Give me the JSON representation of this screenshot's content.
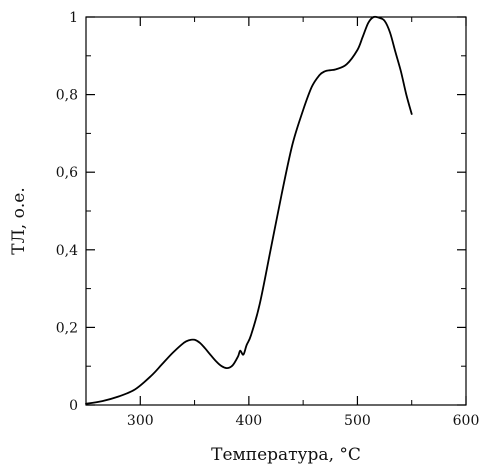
{
  "chart_data": {
    "type": "line",
    "xlabel": "Температура, °С",
    "ylabel": "ТЛ, о.е.",
    "xlim": [
      250,
      600
    ],
    "ylim": [
      0,
      1
    ],
    "x_ticks": [
      {
        "value": 300,
        "label": "300"
      },
      {
        "value": 400,
        "label": "400"
      },
      {
        "value": 500,
        "label": "500"
      },
      {
        "value": 600,
        "label": "600"
      }
    ],
    "y_ticks": [
      {
        "value": 0,
        "label": "0"
      },
      {
        "value": 0.2,
        "label": "0,2"
      },
      {
        "value": 0.4,
        "label": "0,4"
      },
      {
        "value": 0.6,
        "label": "0,6"
      },
      {
        "value": 0.8,
        "label": "0,8"
      },
      {
        "value": 1,
        "label": "1"
      }
    ],
    "grid": false,
    "series": [
      {
        "x": [
          250,
          265,
          280,
          295,
          310,
          320,
          330,
          340,
          345,
          350,
          355,
          360,
          365,
          370,
          375,
          380,
          385,
          390,
          392,
          395,
          398,
          402,
          410,
          420,
          430,
          440,
          450,
          458,
          465,
          470,
          475,
          480,
          490,
          500,
          505,
          510,
          515,
          520,
          525,
          530,
          535,
          540,
          545,
          550
        ],
        "y": [
          0.003,
          0.01,
          0.022,
          0.04,
          0.075,
          0.105,
          0.135,
          0.16,
          0.167,
          0.168,
          0.16,
          0.145,
          0.128,
          0.112,
          0.1,
          0.095,
          0.102,
          0.125,
          0.14,
          0.13,
          0.155,
          0.18,
          0.26,
          0.4,
          0.54,
          0.67,
          0.76,
          0.82,
          0.85,
          0.86,
          0.863,
          0.865,
          0.878,
          0.915,
          0.95,
          0.985,
          1.0,
          0.998,
          0.99,
          0.96,
          0.91,
          0.86,
          0.8,
          0.75
        ]
      }
    ]
  }
}
